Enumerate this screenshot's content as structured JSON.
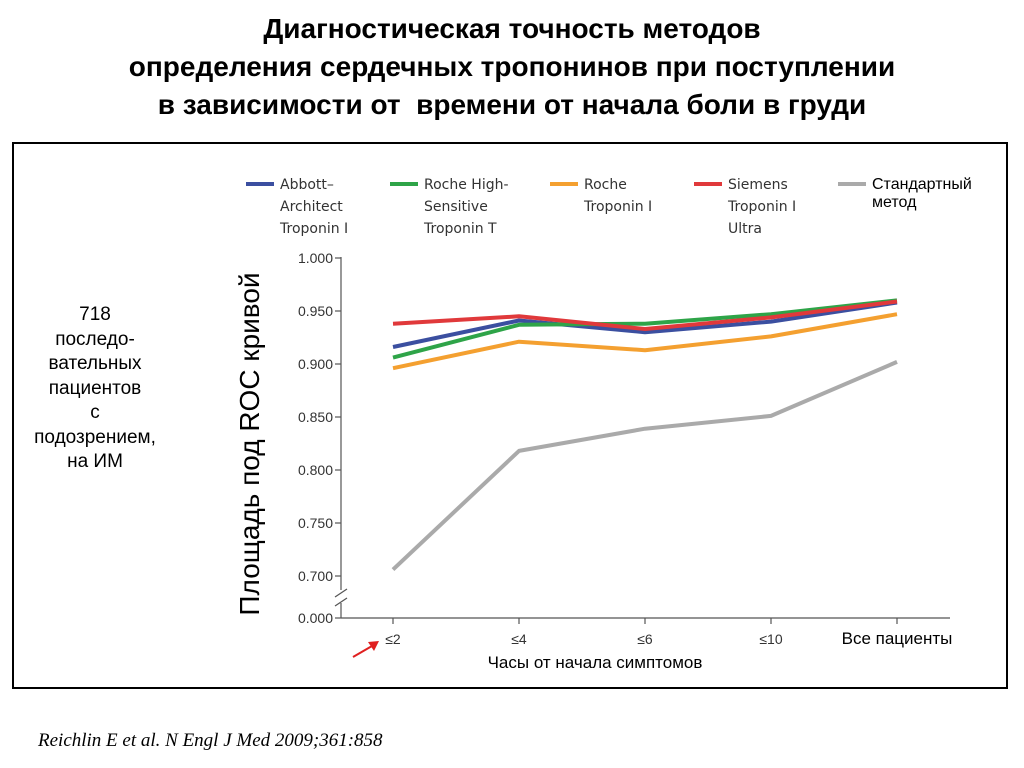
{
  "header": {
    "title_lines": [
      "Диагностическая точность методов",
      "определения сердечных тропонинов при поступлении",
      "в зависимости от  времени от начала боли в груди"
    ]
  },
  "side_note_lines": [
    "718",
    "последо-",
    "вательных",
    "пациентов",
    "с",
    "подозрением,",
    "на ИМ"
  ],
  "citation": "Reichlin E et al. N Engl J Med 2009;361:858",
  "chart_data": {
    "type": "line",
    "title": "",
    "xlabel": "Часы от начала симптомов",
    "ylabel": "Площадь под ROC кривой",
    "categories": [
      "≤2",
      "≤4",
      "≤6",
      "≤10",
      "Все пациенты"
    ],
    "y_ticks": [
      "1.000",
      "0.950",
      "0.900",
      "0.850",
      "0.800",
      "0.750",
      "0.700",
      "0.000"
    ],
    "ylim": [
      0.7,
      1.0
    ],
    "axis_break": true,
    "axis_zero_label": "0.000",
    "legend_position": "top",
    "grid": false,
    "series": [
      {
        "name_lines": [
          "Abbott–",
          "Architect",
          "Troponin I"
        ],
        "color": "#3b4fa0",
        "values": [
          0.916,
          0.941,
          0.93,
          0.94,
          0.958
        ]
      },
      {
        "name_lines": [
          "Roche High-",
          "Sensitive",
          "Troponin T"
        ],
        "color": "#2ea448",
        "values": [
          0.906,
          0.937,
          0.938,
          0.947,
          0.96
        ]
      },
      {
        "name_lines": [
          "Roche",
          "Troponin I"
        ],
        "color": "#f4a030",
        "values": [
          0.896,
          0.921,
          0.913,
          0.926,
          0.947
        ]
      },
      {
        "name_lines": [
          "Siemens",
          "Troponin I",
          "Ultra"
        ],
        "color": "#e0393b",
        "values": [
          0.938,
          0.945,
          0.933,
          0.944,
          0.959
        ]
      },
      {
        "name_lines": [
          "Стандартный",
          "метод"
        ],
        "color": "#aaaaaa",
        "values": [
          0.706,
          0.818,
          0.839,
          0.851,
          0.902
        ]
      }
    ],
    "highlight_arrow_color": "#e02020"
  }
}
